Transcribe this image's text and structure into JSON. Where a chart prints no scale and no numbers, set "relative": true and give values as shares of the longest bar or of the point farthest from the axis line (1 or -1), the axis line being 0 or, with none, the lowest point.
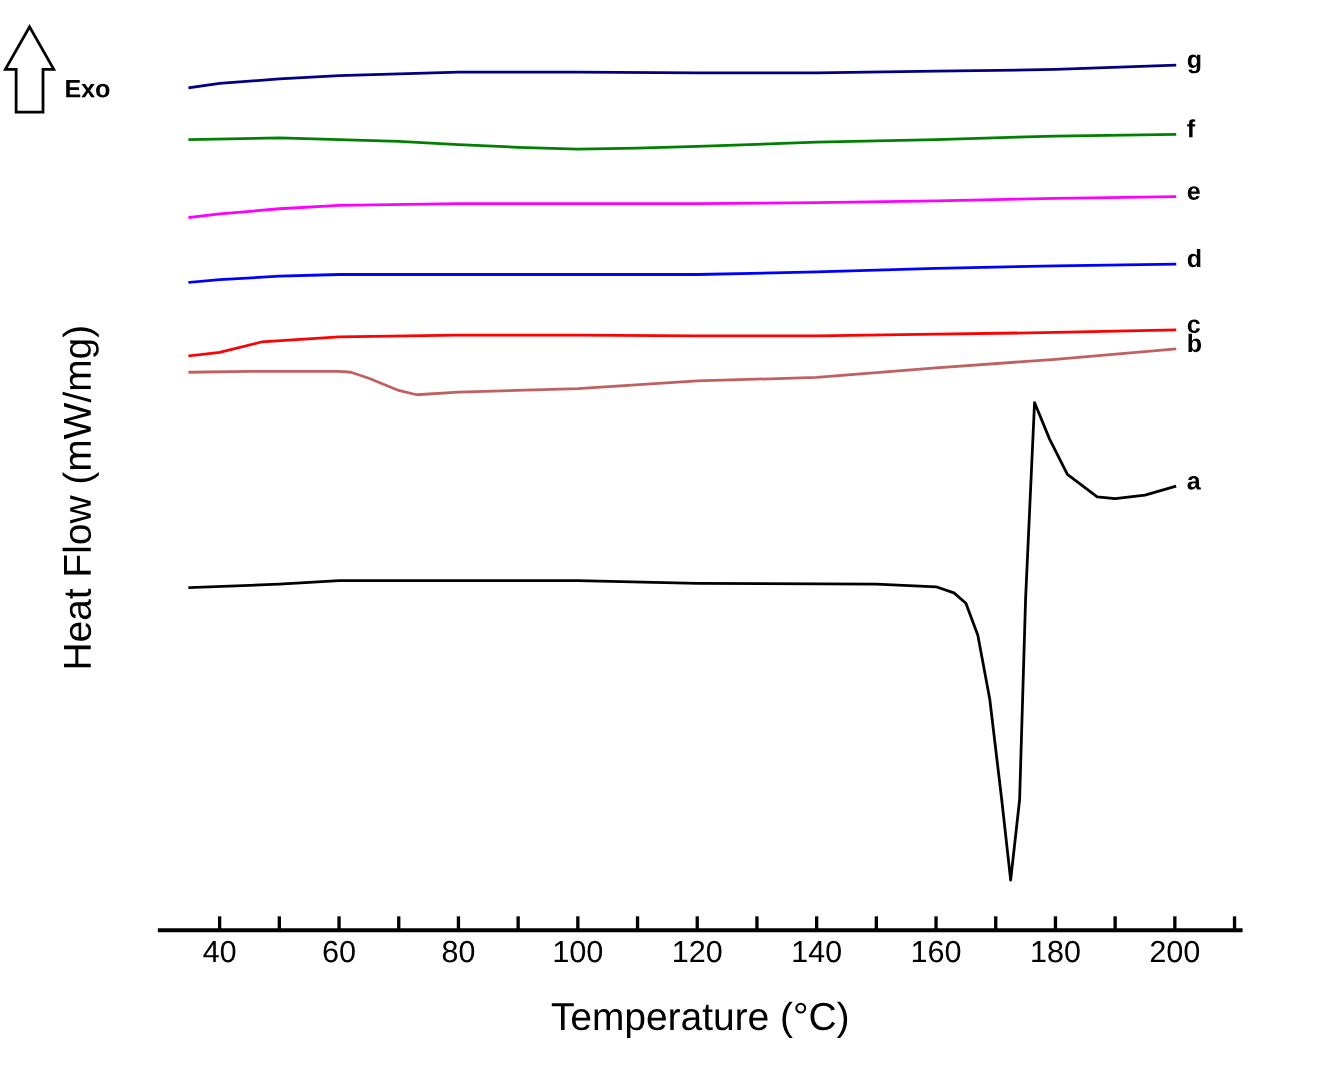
{
  "chart_data": {
    "type": "line",
    "relative": true,
    "xlabel": "Temperature (°C)",
    "ylabel": "Heat Flow (mW/mg)",
    "annotations": [
      "Exo"
    ],
    "xlim": [
      30,
      211
    ],
    "xticks": [
      40,
      {
        "value": 50,
        "label": null
      },
      60,
      {
        "value": 70,
        "label": null
      },
      80,
      {
        "value": 90,
        "label": null
      },
      100,
      {
        "value": 110,
        "label": null
      },
      120,
      {
        "value": 130,
        "label": null
      },
      140,
      {
        "value": 150,
        "label": null
      },
      160,
      {
        "value": 170,
        "label": null
      },
      180,
      {
        "value": 190,
        "label": null
      },
      200,
      {
        "value": 210,
        "label": null
      }
    ],
    "tick_labels": "x",
    "grid": false,
    "marker": "none",
    "line_style": "solid",
    "series": [
      {
        "name": "a",
        "color": "#000000",
        "x": [
          35,
          50,
          60,
          100,
          120,
          150,
          160,
          163,
          165,
          167,
          169,
          171,
          172.5,
          174,
          175,
          176.5,
          179,
          182,
          187,
          190,
          195,
          200
        ],
        "values": [
          0.396,
          0.4,
          0.404,
          0.404,
          0.401,
          0.4,
          0.397,
          0.39,
          0.378,
          0.341,
          0.267,
          0.151,
          0.058,
          0.151,
          0.383,
          0.61,
          0.568,
          0.527,
          0.501,
          0.499,
          0.503,
          0.513
        ]
      },
      {
        "name": "b",
        "color": "#c06060",
        "x": [
          35,
          45,
          60,
          62,
          65,
          70,
          73,
          80,
          100,
          120,
          140,
          160,
          180,
          200
        ],
        "values": [
          0.645,
          0.646,
          0.646,
          0.645,
          0.638,
          0.624,
          0.619,
          0.622,
          0.626,
          0.635,
          0.639,
          0.65,
          0.66,
          0.672
        ]
      },
      {
        "name": "c",
        "color": "#ff0000",
        "x": [
          35,
          40,
          47,
          60,
          80,
          100,
          120,
          140,
          160,
          180,
          200
        ],
        "values": [
          0.664,
          0.668,
          0.68,
          0.686,
          0.688,
          0.688,
          0.687,
          0.687,
          0.689,
          0.691,
          0.694
        ]
      },
      {
        "name": "d",
        "color": "#0000ff",
        "x": [
          35,
          40,
          50,
          60,
          100,
          120,
          140,
          160,
          180,
          200
        ],
        "values": [
          0.749,
          0.752,
          0.756,
          0.758,
          0.758,
          0.758,
          0.761,
          0.765,
          0.768,
          0.77
        ]
      },
      {
        "name": "e",
        "color": "#ff00ff",
        "x": [
          35,
          40,
          50,
          60,
          80,
          120,
          140,
          160,
          180,
          200
        ],
        "values": [
          0.824,
          0.828,
          0.834,
          0.838,
          0.84,
          0.84,
          0.841,
          0.843,
          0.846,
          0.848
        ]
      },
      {
        "name": "f",
        "color": "#008000",
        "x": [
          35,
          50,
          60,
          70,
          80,
          90,
          100,
          110,
          120,
          140,
          160,
          180,
          200
        ],
        "values": [
          0.914,
          0.916,
          0.914,
          0.912,
          0.908,
          0.905,
          0.903,
          0.904,
          0.906,
          0.911,
          0.914,
          0.918,
          0.92
        ]
      },
      {
        "name": "g",
        "color": "#000080",
        "x": [
          35,
          40,
          50,
          60,
          80,
          100,
          120,
          140,
          160,
          180,
          200
        ],
        "values": [
          0.974,
          0.979,
          0.984,
          0.988,
          0.992,
          0.992,
          0.991,
          0.991,
          0.993,
          0.995,
          1.0
        ]
      }
    ]
  }
}
